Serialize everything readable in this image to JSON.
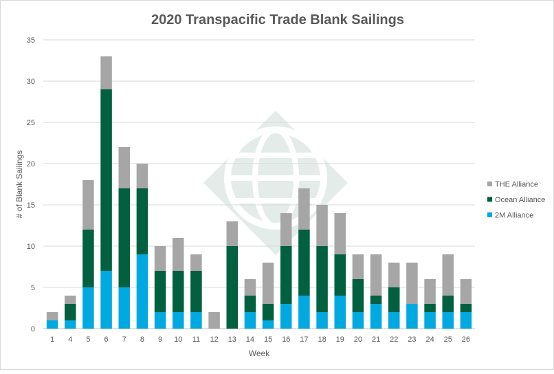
{
  "chart_data": {
    "type": "bar",
    "stacked": true,
    "title": "2020 Transpacific Trade Blank Sailings",
    "xlabel": "Week",
    "ylabel": "# of Blank Sailings",
    "ylim": [
      0,
      35
    ],
    "yticks": [
      0,
      5,
      10,
      15,
      20,
      25,
      30,
      35
    ],
    "grid": true,
    "legend_placement": "right",
    "categories": [
      "1",
      "4",
      "5",
      "6",
      "7",
      "8",
      "9",
      "10",
      "11",
      "12",
      "13",
      "14",
      "15",
      "16",
      "17",
      "18",
      "19",
      "20",
      "21",
      "22",
      "23",
      "24",
      "25",
      "26"
    ],
    "series": [
      {
        "name": "2M Alliance",
        "color": "#00a9e0",
        "values": [
          1,
          1,
          5,
          7,
          5,
          9,
          2,
          2,
          2,
          0,
          0,
          2,
          1,
          3,
          4,
          2,
          4,
          2,
          3,
          2,
          3,
          2,
          2,
          2
        ]
      },
      {
        "name": "Ocean Alliance",
        "color": "#006040",
        "values": [
          0,
          2,
          7,
          22,
          12,
          8,
          5,
          5,
          5,
          0,
          10,
          2,
          2,
          7,
          8,
          8,
          5,
          4,
          1,
          3,
          0,
          1,
          2,
          1
        ]
      },
      {
        "name": "THE Alliance",
        "color": "#a6a6a6",
        "values": [
          1,
          1,
          6,
          4,
          5,
          3,
          3,
          4,
          2,
          2,
          3,
          2,
          5,
          4,
          5,
          5,
          5,
          3,
          5,
          3,
          5,
          3,
          5,
          3
        ]
      }
    ]
  }
}
